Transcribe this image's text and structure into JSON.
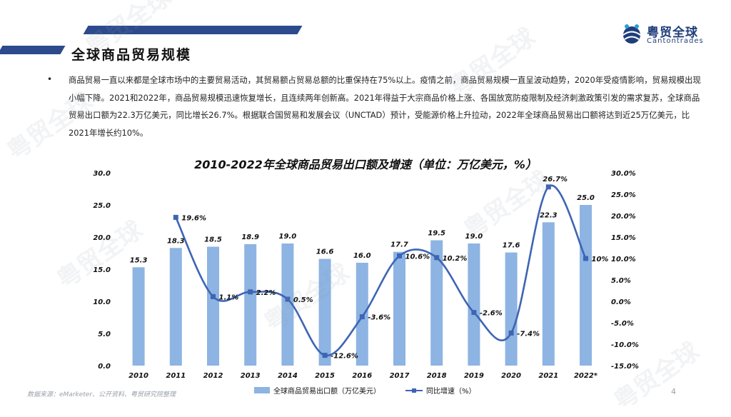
{
  "header": {
    "title": "全球商品贸易规模"
  },
  "logo": {
    "cn": "粤贸全球",
    "en": "Cantontrades"
  },
  "watermark_text": "粤贸全球",
  "body": {
    "bullet": "•",
    "paragraph": "商品贸易一直以来都是全球市场中的主要贸易活动，其贸易额占贸易总额的比重保持在75%以上。疫情之前，商品贸易规模一直呈波动趋势，2020年受疫情影响，贸易规模出现小幅下降。2021和2022年，商品贸易规模迅速恢复增长，且连续两年创新高。2021年得益于大宗商品价格上涨、各国放宽防疫限制及经济刺激政策引发的需求复苏，全球商品贸易出口额为22.3万亿美元，同比增长26.7%。根据联合国贸易和发展会议（UNCTAD）预计，受能源价格上升拉动，2022年全球商品贸易出口额将达到近25万亿美元，比2021年增长约10%。"
  },
  "footer": {
    "source": "数据来源：eMarketer、公开资料、粤贸研究院整理",
    "page": "4"
  },
  "chart_data": {
    "type": "bar",
    "title": "2010-2022年全球商品贸易出口额及增速（单位：万亿美元，%）",
    "categories": [
      "2010",
      "2011",
      "2012",
      "2013",
      "2014",
      "2015",
      "2016",
      "2017",
      "2018",
      "2019",
      "2020",
      "2021",
      "2022*"
    ],
    "series": [
      {
        "name": "全球商品贸易出口额（万亿美元）",
        "type": "bar",
        "axis": "left",
        "values": [
          15.3,
          18.3,
          18.5,
          18.9,
          19.0,
          16.6,
          16.0,
          17.7,
          19.5,
          19.0,
          17.6,
          22.3,
          25.0
        ],
        "labels": [
          "15.3",
          "18.3",
          "18.5",
          "18.9",
          "19.0",
          "16.6",
          "16.0",
          "17.7",
          "19.5",
          "19.0",
          "17.6",
          "22.3",
          "25.0"
        ]
      },
      {
        "name": "同比增速（%）",
        "type": "line",
        "axis": "right",
        "values": [
          null,
          19.6,
          1.1,
          2.2,
          0.5,
          -12.6,
          -3.6,
          10.6,
          10.2,
          -2.6,
          -7.4,
          26.7,
          10
        ],
        "labels": [
          "",
          "19.6%",
          "1.1%",
          "2.2%",
          "0.5%",
          "-12.6%",
          "-3.6%",
          "10.6%",
          "10.2%",
          "-2.6%",
          "-7.4%",
          "26.7%",
          "10%"
        ]
      }
    ],
    "y_left": {
      "min": 0,
      "max": 30,
      "ticks": [
        "0.0",
        "5.0",
        "10.0",
        "15.0",
        "20.0",
        "25.0",
        "30.0"
      ]
    },
    "y_right": {
      "min": -15,
      "max": 30,
      "ticks": [
        "-15.0%",
        "-10.0%",
        "-5.0%",
        "0.0%",
        "5.0%",
        "10.0%",
        "15.0%",
        "20.0%",
        "25.0%",
        "30.0%"
      ]
    },
    "grid": false,
    "legend_position": "bottom",
    "colors": {
      "bar": "#8db4e2",
      "line": "#3e64b4",
      "text": "#111111"
    }
  }
}
